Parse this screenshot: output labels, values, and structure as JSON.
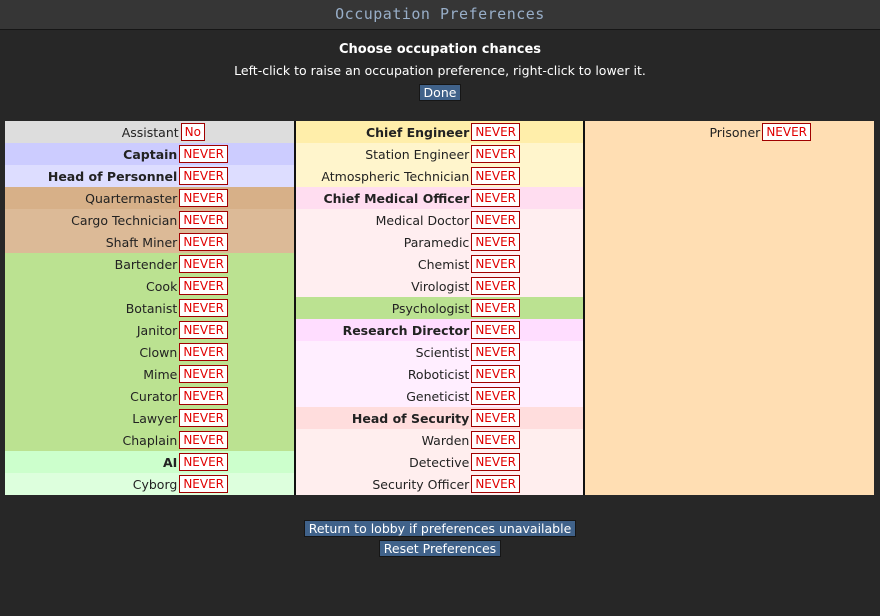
{
  "window": {
    "title": "Occupation Preferences"
  },
  "header": {
    "heading": "Choose occupation chances",
    "instructions": "Left-click to raise an occupation preference, right-click to lower it.",
    "done_label": "Done"
  },
  "columns": [
    [
      {
        "job": "Assistant",
        "pref": "No",
        "bg": "#dddddd",
        "bold": false
      },
      {
        "job": "Captain",
        "pref": "NEVER",
        "bg": "#ccccff",
        "bold": true
      },
      {
        "job": "Head of Personnel",
        "pref": "NEVER",
        "bg": "#ddddff",
        "bold": true
      },
      {
        "job": "Quartermaster",
        "pref": "NEVER",
        "bg": "#d7b088",
        "bold": false
      },
      {
        "job": "Cargo Technician",
        "pref": "NEVER",
        "bg": "#dcba97",
        "bold": false
      },
      {
        "job": "Shaft Miner",
        "pref": "NEVER",
        "bg": "#dcba97",
        "bold": false
      },
      {
        "job": "Bartender",
        "pref": "NEVER",
        "bg": "#bbe291",
        "bold": false
      },
      {
        "job": "Cook",
        "pref": "NEVER",
        "bg": "#bbe291",
        "bold": false
      },
      {
        "job": "Botanist",
        "pref": "NEVER",
        "bg": "#bbe291",
        "bold": false
      },
      {
        "job": "Janitor",
        "pref": "NEVER",
        "bg": "#bbe291",
        "bold": false
      },
      {
        "job": "Clown",
        "pref": "NEVER",
        "bg": "#bbe291",
        "bold": false
      },
      {
        "job": "Mime",
        "pref": "NEVER",
        "bg": "#bbe291",
        "bold": false
      },
      {
        "job": "Curator",
        "pref": "NEVER",
        "bg": "#bbe291",
        "bold": false
      },
      {
        "job": "Lawyer",
        "pref": "NEVER",
        "bg": "#bbe291",
        "bold": false
      },
      {
        "job": "Chaplain",
        "pref": "NEVER",
        "bg": "#bbe291",
        "bold": false
      },
      {
        "job": "AI",
        "pref": "NEVER",
        "bg": "#ccffcc",
        "bold": true
      },
      {
        "job": "Cyborg",
        "pref": "NEVER",
        "bg": "#ddffdd",
        "bold": false
      }
    ],
    [
      {
        "job": "Chief Engineer",
        "pref": "NEVER",
        "bg": "#ffeeaa",
        "bold": true
      },
      {
        "job": "Station Engineer",
        "pref": "NEVER",
        "bg": "#fff5cc",
        "bold": false
      },
      {
        "job": "Atmospheric Technician",
        "pref": "NEVER",
        "bg": "#fff5cc",
        "bold": false
      },
      {
        "job": "Chief Medical Officer",
        "pref": "NEVER",
        "bg": "#ffddf0",
        "bold": true
      },
      {
        "job": "Medical Doctor",
        "pref": "NEVER",
        "bg": "#ffeef0",
        "bold": false
      },
      {
        "job": "Paramedic",
        "pref": "NEVER",
        "bg": "#ffeef0",
        "bold": false
      },
      {
        "job": "Chemist",
        "pref": "NEVER",
        "bg": "#ffeef0",
        "bold": false
      },
      {
        "job": "Virologist",
        "pref": "NEVER",
        "bg": "#ffeef0",
        "bold": false
      },
      {
        "job": "Psychologist",
        "pref": "NEVER",
        "bg": "#bbe291",
        "bold": false
      },
      {
        "job": "Research Director",
        "pref": "NEVER",
        "bg": "#ffddff",
        "bold": true
      },
      {
        "job": "Scientist",
        "pref": "NEVER",
        "bg": "#ffeeff",
        "bold": false
      },
      {
        "job": "Roboticist",
        "pref": "NEVER",
        "bg": "#ffeeff",
        "bold": false
      },
      {
        "job": "Geneticist",
        "pref": "NEVER",
        "bg": "#ffeeff",
        "bold": false
      },
      {
        "job": "Head of Security",
        "pref": "NEVER",
        "bg": "#ffdddd",
        "bold": true
      },
      {
        "job": "Warden",
        "pref": "NEVER",
        "bg": "#ffeeee",
        "bold": false
      },
      {
        "job": "Detective",
        "pref": "NEVER",
        "bg": "#ffeeee",
        "bold": false
      },
      {
        "job": "Security Officer",
        "pref": "NEVER",
        "bg": "#ffeeee",
        "bold": false
      }
    ],
    [
      {
        "job": "Prisoner",
        "pref": "NEVER",
        "bg": "#ffdeb3",
        "bold": false
      }
    ]
  ],
  "footer": {
    "return_label": "Return to lobby if preferences unavailable",
    "reset_label": "Reset Preferences"
  }
}
